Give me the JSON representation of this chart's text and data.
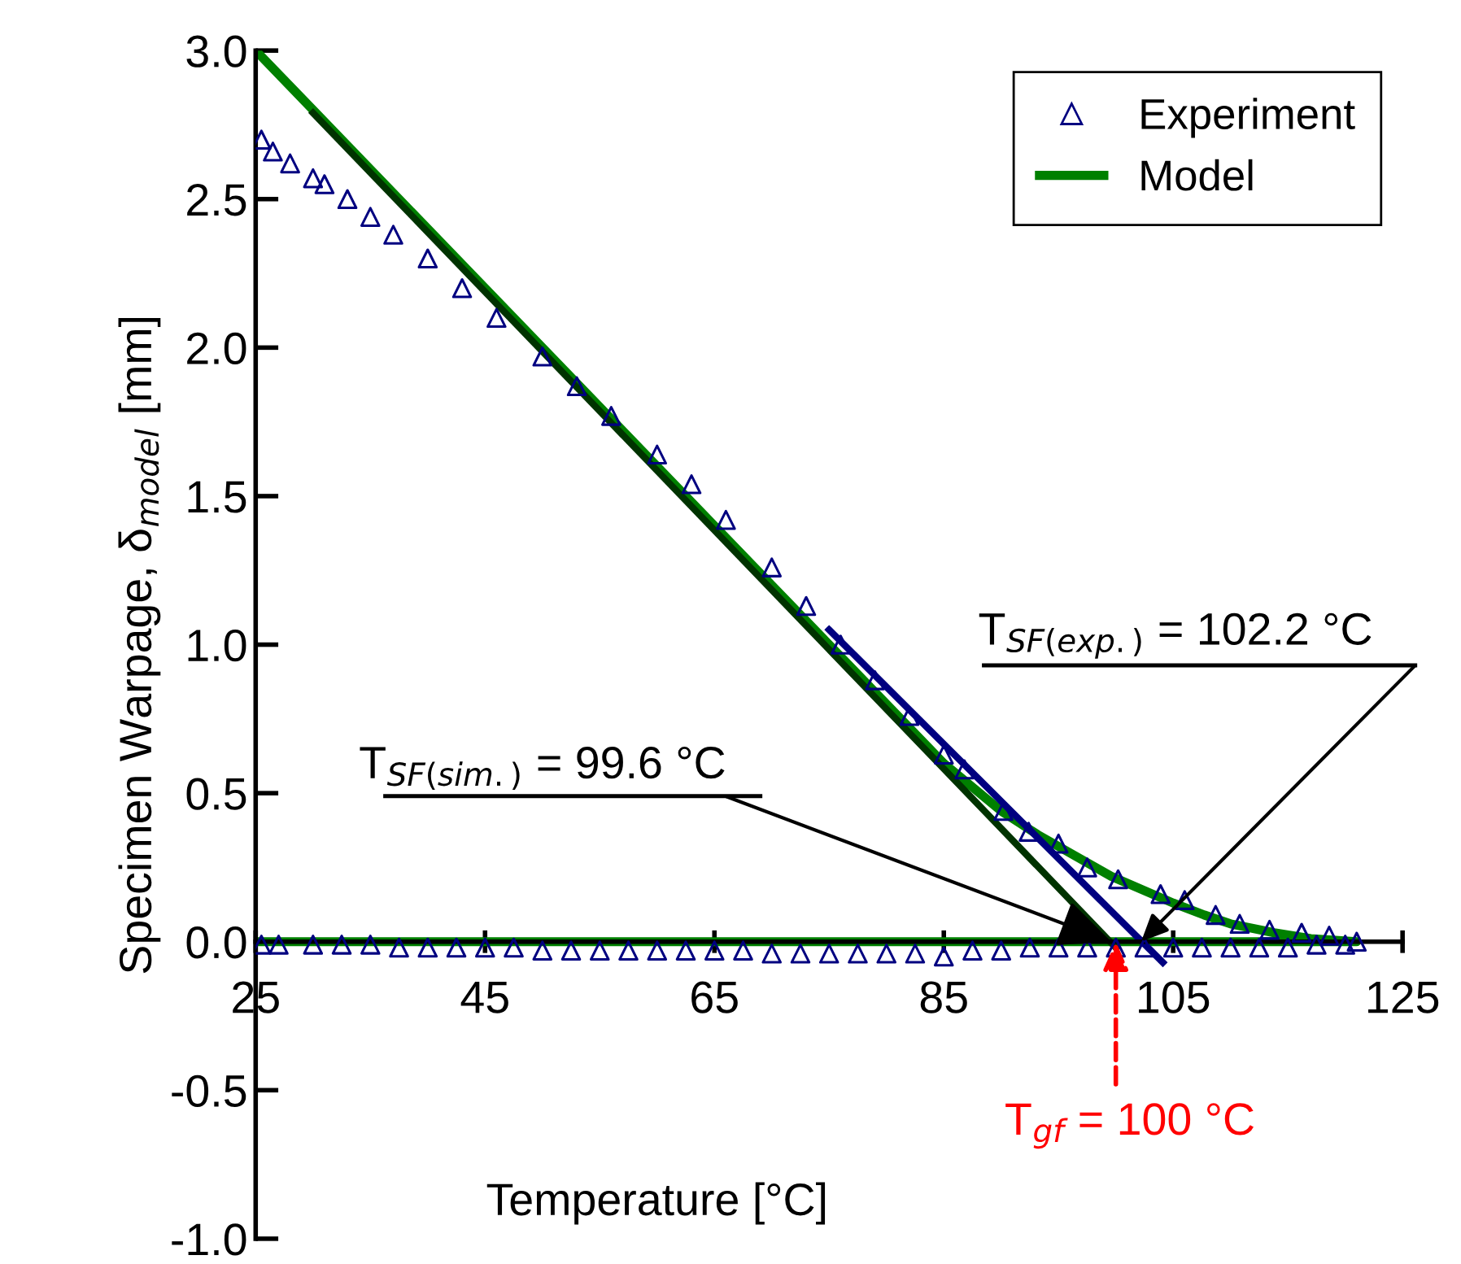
{
  "chart_data": {
    "type": "scatter",
    "xlabel": "Temperature [°C]",
    "ylabel": "Specimen Warpage, δ$_{model}$ [mm]",
    "xlim": [
      25,
      125
    ],
    "xticks": [
      25,
      45,
      65,
      85,
      105,
      125
    ],
    "ylim": [
      -1.0,
      3.0
    ],
    "yticks": [
      {
        "value": -1,
        "label": "-1.0"
      },
      {
        "value": -0.5,
        "label": "-0.5"
      },
      {
        "value": 0,
        "label": "0.0"
      },
      {
        "value": 0.5,
        "label": "0.5"
      },
      {
        "value": 1,
        "label": "1.0"
      },
      {
        "value": 1.5,
        "label": "1.5"
      },
      {
        "value": 2,
        "label": "2.0"
      },
      {
        "value": 2.5,
        "label": "2.5"
      },
      {
        "value": 3,
        "label": "3.0"
      }
    ],
    "grid": false,
    "legend": "top right",
    "series": [
      {
        "name": "Experiment",
        "marker": "triangle",
        "color": "#000080",
        "x": [
          25.5,
          26.5,
          28,
          30,
          31,
          33,
          35,
          37,
          40,
          43,
          46,
          50,
          53,
          56,
          60,
          63,
          66,
          70,
          73,
          76,
          79,
          82,
          85,
          86.8,
          90.2,
          92.4,
          95,
          97.5,
          100.2,
          103.9,
          106,
          108.7,
          110.8,
          113.4,
          116.2,
          118.6,
          121,
          25.5,
          27,
          30,
          32.5,
          35,
          37.5,
          40,
          42.5,
          45,
          47.5,
          50,
          52.5,
          55,
          57.5,
          60,
          62.5,
          65,
          67.5,
          70,
          72.5,
          75,
          77.5,
          80,
          82.5,
          85,
          87.5,
          90,
          92.5,
          95,
          97.5,
          100,
          102.5,
          105,
          107.5,
          110,
          112.5,
          115,
          117.5,
          120
        ],
        "values": [
          2.7,
          2.66,
          2.62,
          2.57,
          2.55,
          2.5,
          2.44,
          2.38,
          2.3,
          2.2,
          2.1,
          1.97,
          1.87,
          1.77,
          1.64,
          1.54,
          1.42,
          1.26,
          1.13,
          1.0,
          0.88,
          0.76,
          0.63,
          0.58,
          0.44,
          0.37,
          0.33,
          0.25,
          0.21,
          0.16,
          0.14,
          0.09,
          0.06,
          0.04,
          0.03,
          0.02,
          0.0,
          -0.01,
          -0.01,
          -0.01,
          -0.01,
          -0.01,
          -0.02,
          -0.02,
          -0.02,
          -0.02,
          -0.02,
          -0.03,
          -0.03,
          -0.03,
          -0.03,
          -0.03,
          -0.03,
          -0.03,
          -0.03,
          -0.04,
          -0.04,
          -0.04,
          -0.04,
          -0.04,
          -0.04,
          -0.05,
          -0.03,
          -0.03,
          -0.02,
          -0.02,
          -0.02,
          -0.02,
          -0.02,
          -0.02,
          -0.02,
          -0.02,
          -0.02,
          -0.02,
          -0.01,
          -0.01
        ]
      },
      {
        "name": "Model",
        "type": "line",
        "color": "#008000",
        "x": [
          25,
          30,
          50,
          70,
          80,
          85,
          90,
          93.2,
          99.6,
          105,
          107.7,
          110,
          113.8,
          117,
          121,
          25
        ],
        "values": [
          3.0,
          2.8,
          2.0,
          1.2,
          0.8,
          0.6,
          0.44,
          0.36,
          0.22,
          0.13,
          0.09,
          0.06,
          0.03,
          0.01,
          0.0,
          0.0
        ]
      },
      {
        "type": "line",
        "color": "#003300",
        "x": [
          30,
          100
        ],
        "values": [
          2.79,
          -0.02
        ]
      },
      {
        "type": "line",
        "color": "#000080",
        "x": [
          75,
          104.1
        ],
        "values": [
          1.05,
          -0.07
        ]
      }
    ],
    "annotations": [
      {
        "text": "T$_{SF(sim.)}$ = 99.6 °C",
        "x": 99.6,
        "y": 0
      },
      {
        "text": "T$_{SF(exp.)}$ = 102.2 °C",
        "x": 102.2,
        "y": 0
      },
      {
        "text": "T$_{gf}$ = 100 °C",
        "x": 100,
        "y": 0
      }
    ]
  }
}
